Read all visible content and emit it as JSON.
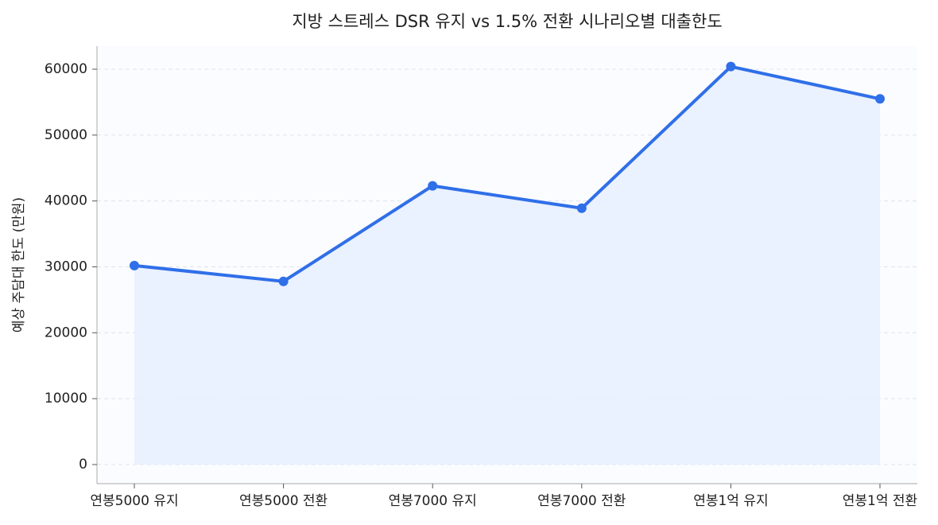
{
  "chart_data": {
    "type": "area",
    "title": "지방 스트레스 DSR 유지 vs 1.5% 전환 시나리오별 대출한도",
    "xlabel": "",
    "ylabel": "예상 주담대 한도 (만원)",
    "categories": [
      "연봉5000 유지",
      "연봉5000 전환",
      "연봉7000 유지",
      "연봉7000 전환",
      "연봉1억 유지",
      "연봉1억 전환"
    ],
    "series": [
      {
        "values": [
          30200,
          27800,
          42300,
          38900,
          60400,
          55500
        ]
      }
    ],
    "ylim": [
      -2900,
      63500
    ],
    "yticks": [
      0,
      10000,
      20000,
      30000,
      40000,
      50000,
      60000
    ],
    "grid": true,
    "legend": "none",
    "colors": {
      "line": "#2f6fe8",
      "fill": "#e8efff",
      "plot_bg": "#fbfcff",
      "grid": "#dde3ee",
      "axis": "#b9b9b9"
    }
  }
}
